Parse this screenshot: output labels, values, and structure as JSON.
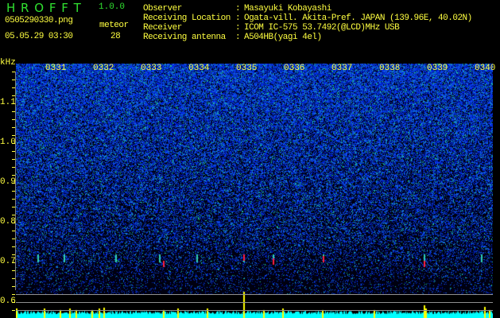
{
  "header": {
    "app_title": "H R O F F T",
    "version": "1.0.0",
    "filename": "0505290330.png",
    "datetime": "05.05.29 03:30",
    "meteor_label": "meteor",
    "meteor_count": "28"
  },
  "info": [
    {
      "label": "Observer",
      "value": "Masayuki Kobayashi"
    },
    {
      "label": "Receiving Location",
      "value": "Ogata-vill. Akita-Pref. JAPAN (139.96E, 40.02N)"
    },
    {
      "label": "Receiver",
      "value": "ICOM IC-575 53.7492(@LCD)MHz USB"
    },
    {
      "label": "Receiving antenna",
      "value": "A504HB(yagi 4el)"
    }
  ],
  "chart_data": {
    "type": "heatmap",
    "ylabel": "kHz",
    "x_ticks": [
      "0331",
      "0332",
      "0333",
      "0334",
      "0335",
      "0336",
      "0337",
      "0338",
      "0339",
      "0340"
    ],
    "y_ticks": [
      "1.1",
      "1.0",
      "0.9",
      "0.8",
      "0.7",
      "0.6"
    ],
    "ylim": [
      0.56,
      1.2
    ],
    "colors": {
      "background": "#000010",
      "noise": "#2030e0",
      "mid": "#30c0a0",
      "peak": "#ff2040",
      "histogram": "#00ffff",
      "spike": "#ffff00"
    }
  }
}
